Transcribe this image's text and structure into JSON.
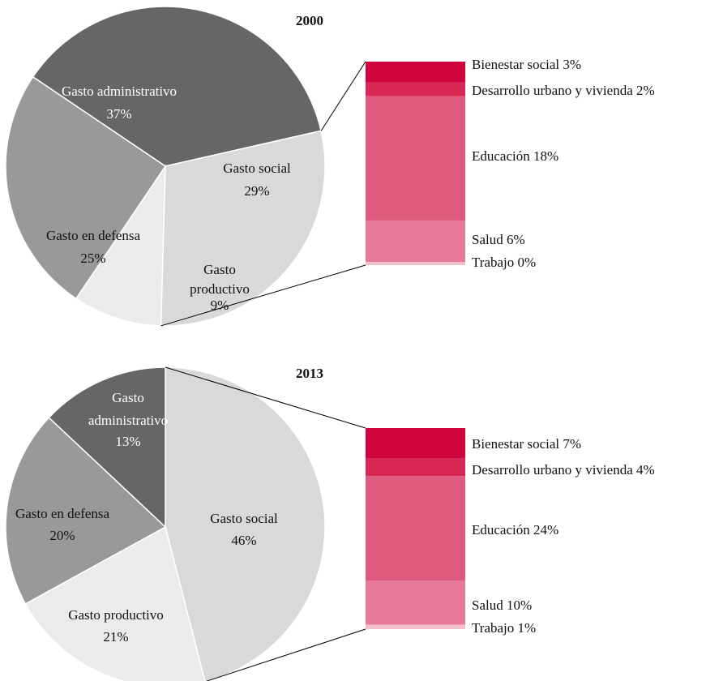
{
  "chart_data": [
    {
      "type": "pie",
      "title": "2000",
      "slices": [
        {
          "line1": "Gasto administrativo",
          "line2": "",
          "value_label": "37%",
          "value": 37,
          "color": "#666666",
          "dark": true
        },
        {
          "line1": "Gasto social",
          "line2": "",
          "value_label": "29%",
          "value": 29,
          "color": "#d9d9d9",
          "dark": false
        },
        {
          "line1": "Gasto",
          "line2": "productivo",
          "value_label": "9%",
          "value": 9,
          "color": "#ebebeb",
          "dark": false
        },
        {
          "line1": "Gasto en defensa",
          "line2": "",
          "value_label": "25%",
          "value": 25,
          "color": "#999999",
          "dark": false
        }
      ],
      "breakdown": [
        {
          "label": "Bienestar social 3%",
          "value": 3,
          "color": "#d0043c"
        },
        {
          "label": "Desarrollo urbano y vivienda 2%",
          "value": 2,
          "color": "#d72752"
        },
        {
          "label": "Educación 18%",
          "value": 18,
          "color": "#df5a7f"
        },
        {
          "label": "Salud 6%",
          "value": 6,
          "color": "#e67a98"
        },
        {
          "label": "Trabajo 0%",
          "value": 0,
          "color": "#f2c0ce"
        }
      ]
    },
    {
      "type": "pie",
      "title": "2013",
      "slices": [
        {
          "line1": "Gasto social",
          "line2": "",
          "value_label": "46%",
          "value": 46,
          "color": "#d9d9d9",
          "dark": false
        },
        {
          "line1": "Gasto productivo",
          "line2": "",
          "value_label": "21%",
          "value": 21,
          "color": "#ebebeb",
          "dark": false
        },
        {
          "line1": "Gasto en defensa",
          "line2": "",
          "value_label": "20%",
          "value": 20,
          "color": "#999999",
          "dark": false
        },
        {
          "line1": "Gasto",
          "line2": "administrativo",
          "value_label": "13%",
          "value": 13,
          "color": "#666666",
          "dark": true
        }
      ],
      "breakdown": [
        {
          "label": "Bienestar social 7%",
          "value": 7,
          "color": "#d0043c"
        },
        {
          "label": "Desarrollo urbano y vivienda 4%",
          "value": 4,
          "color": "#d72752"
        },
        {
          "label": "Educación 24%",
          "value": 24,
          "color": "#df5a7f"
        },
        {
          "label": "Salud 10%",
          "value": 10,
          "color": "#e67a98"
        },
        {
          "label": "Trabajo 1%",
          "value": 1,
          "color": "#f2c0ce"
        }
      ]
    }
  ]
}
